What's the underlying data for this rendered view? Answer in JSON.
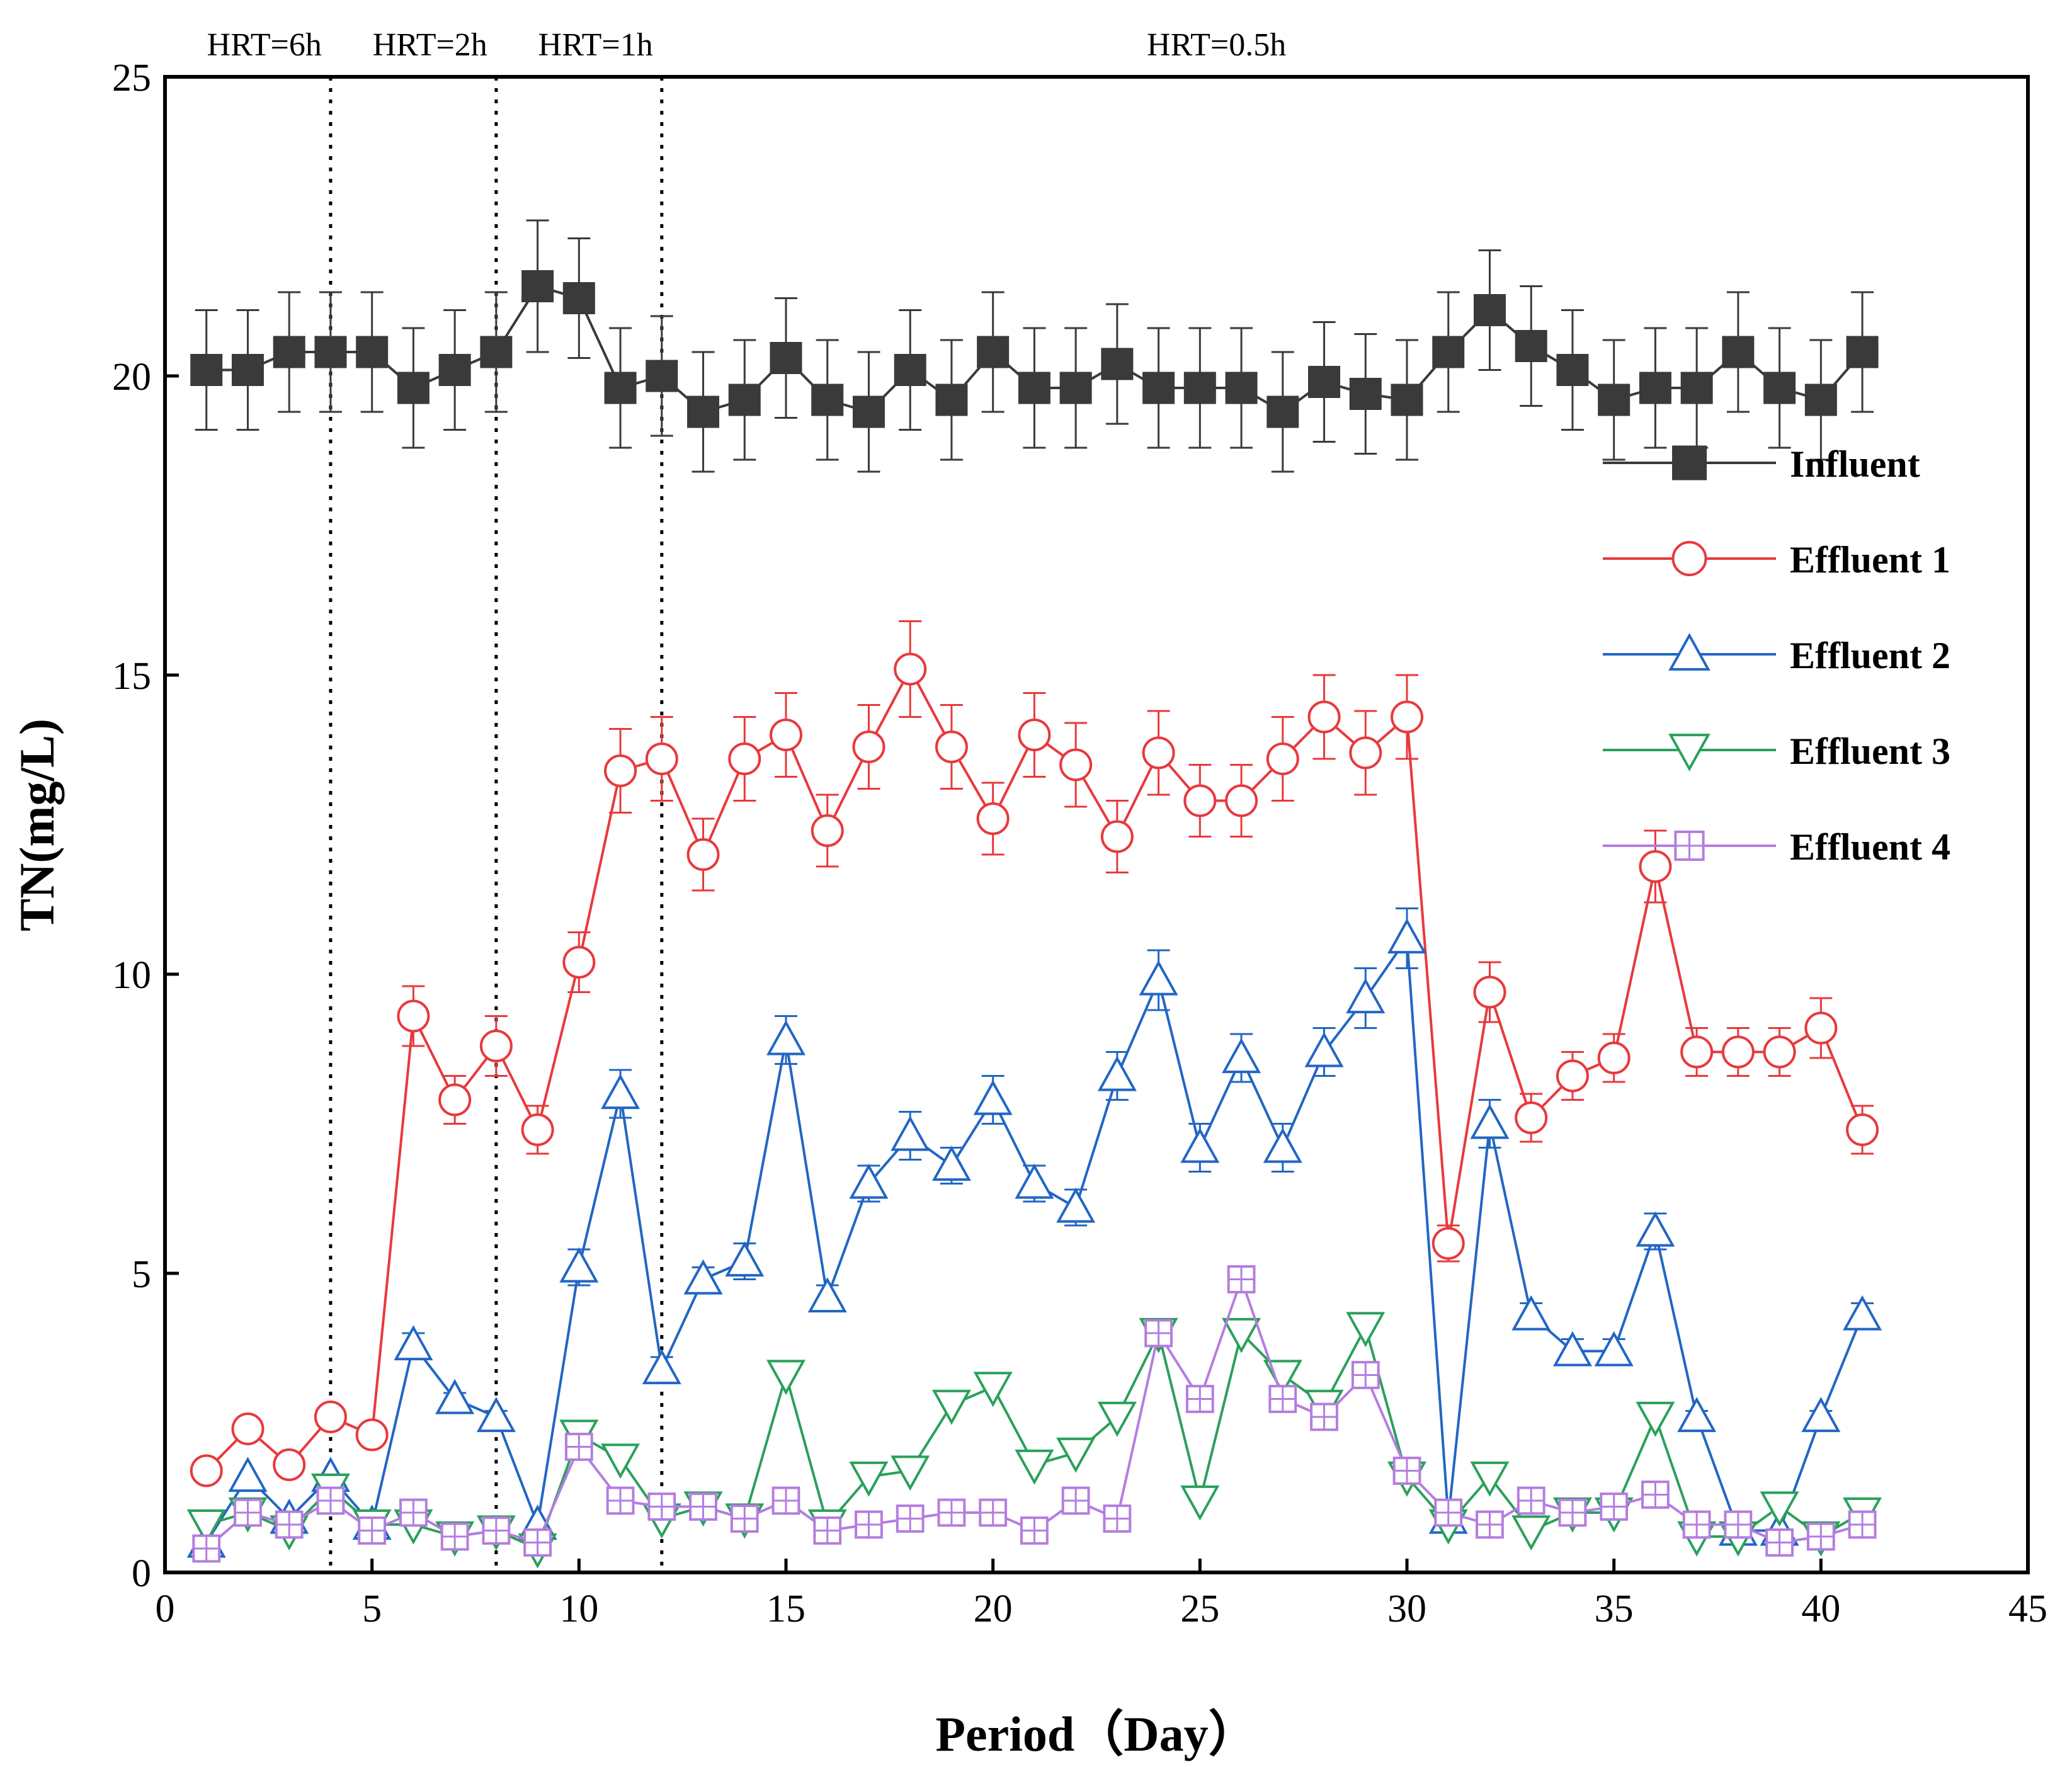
{
  "chart_data": {
    "type": "line",
    "title": "",
    "xlabel": "Period（Day）",
    "ylabel": "TN(mg/L)",
    "xlim": [
      0,
      45
    ],
    "ylim": [
      0,
      25
    ],
    "xticks": [
      0,
      5,
      10,
      15,
      20,
      25,
      30,
      35,
      40,
      45
    ],
    "yticks": [
      0,
      5,
      10,
      15,
      20,
      25
    ],
    "grid": false,
    "legend_position": "right",
    "x": [
      1,
      2,
      3,
      4,
      5,
      6,
      7,
      8,
      9,
      10,
      11,
      12,
      13,
      14,
      15,
      16,
      17,
      18,
      19,
      20,
      21,
      22,
      23,
      24,
      25,
      26,
      27,
      28,
      29,
      30,
      31,
      32,
      33,
      34,
      35,
      36,
      37,
      38,
      39,
      40,
      41
    ],
    "vlines": [
      {
        "x": 4,
        "label": "HRT=6h"
      },
      {
        "x": 8,
        "label": "HRT=2h"
      },
      {
        "x": 12,
        "label": "HRT=1h"
      }
    ],
    "hrt_labels": [
      {
        "text": "HRT=6h",
        "x": 2.4
      },
      {
        "text": "HRT=2h",
        "x": 6.4
      },
      {
        "text": "HRT=1h",
        "x": 10.4
      },
      {
        "text": "HRT=0.5h",
        "x": 25.4
      }
    ],
    "series": [
      {
        "name": "Influent",
        "color": "#3a3a3a",
        "marker": "filled-square",
        "values": [
          20.1,
          20.1,
          20.4,
          20.4,
          20.4,
          19.8,
          20.1,
          20.4,
          21.5,
          21.3,
          19.8,
          20.0,
          19.4,
          19.6,
          20.3,
          19.6,
          19.4,
          20.1,
          19.6,
          20.4,
          19.8,
          19.8,
          20.2,
          19.8,
          19.8,
          19.8,
          19.4,
          19.9,
          19.7,
          19.6,
          20.4,
          21.1,
          20.5,
          20.1,
          19.6,
          19.8,
          19.8,
          20.4,
          19.8,
          19.6,
          20.4
        ],
        "errors": [
          1.0,
          1.0,
          1.0,
          1.0,
          1.0,
          1.0,
          1.0,
          1.0,
          1.1,
          1.0,
          1.0,
          1.0,
          1.0,
          1.0,
          1.0,
          1.0,
          1.0,
          1.0,
          1.0,
          1.0,
          1.0,
          1.0,
          1.0,
          1.0,
          1.0,
          1.0,
          1.0,
          1.0,
          1.0,
          1.0,
          1.0,
          1.0,
          1.0,
          1.0,
          1.0,
          1.0,
          1.0,
          1.0,
          1.0,
          1.0,
          1.0
        ]
      },
      {
        "name": "Effluent 1",
        "color": "#e8393c",
        "marker": "circle",
        "values": [
          1.7,
          2.4,
          1.8,
          2.6,
          2.3,
          9.3,
          7.9,
          8.8,
          7.4,
          10.2,
          13.4,
          13.6,
          12.0,
          13.6,
          14.0,
          12.4,
          13.8,
          15.1,
          13.8,
          12.6,
          14.0,
          13.5,
          12.3,
          13.7,
          12.9,
          12.9,
          13.6,
          14.3,
          13.7,
          14.3,
          5.5,
          9.7,
          7.6,
          8.3,
          8.6,
          11.8,
          8.7,
          8.7,
          8.7,
          9.1,
          7.4
        ],
        "errors": [
          0,
          0,
          0,
          0,
          0,
          0.5,
          0.4,
          0.5,
          0.4,
          0.5,
          0.7,
          0.7,
          0.6,
          0.7,
          0.7,
          0.6,
          0.7,
          0.8,
          0.7,
          0.6,
          0.7,
          0.7,
          0.6,
          0.7,
          0.6,
          0.6,
          0.7,
          0.7,
          0.7,
          0.7,
          0.3,
          0.5,
          0.4,
          0.4,
          0.4,
          0.6,
          0.4,
          0.4,
          0.4,
          0.5,
          0.4
        ]
      },
      {
        "name": "Effluent 2",
        "color": "#2166c4",
        "marker": "triangle-up",
        "values": [
          0.5,
          1.6,
          0.9,
          1.6,
          0.8,
          3.8,
          2.9,
          2.6,
          0.8,
          5.1,
          8.0,
          3.4,
          4.9,
          5.2,
          8.9,
          4.6,
          6.5,
          7.3,
          6.8,
          7.9,
          6.5,
          6.1,
          8.3,
          9.9,
          7.1,
          8.6,
          7.1,
          8.7,
          9.6,
          10.6,
          0.9,
          7.5,
          4.3,
          3.7,
          3.7,
          5.7,
          2.6,
          0.7,
          0.7,
          2.6,
          4.3
        ],
        "errors": [
          0,
          0,
          0,
          0,
          0,
          0.2,
          0.1,
          0.1,
          0,
          0.3,
          0.4,
          0.2,
          0.2,
          0.3,
          0.4,
          0.2,
          0.3,
          0.4,
          0.3,
          0.4,
          0.3,
          0.3,
          0.4,
          0.5,
          0.4,
          0.4,
          0.4,
          0.4,
          0.5,
          0.5,
          0,
          0.4,
          0.2,
          0.2,
          0.2,
          0.3,
          0.1,
          0,
          0,
          0.1,
          0.2
        ]
      },
      {
        "name": "Effluent 3",
        "color": "#2aa05a",
        "marker": "triangle-down",
        "values": [
          0.8,
          1.0,
          0.7,
          1.4,
          0.8,
          0.8,
          0.6,
          0.7,
          0.4,
          2.3,
          1.9,
          0.9,
          1.1,
          0.9,
          3.3,
          0.8,
          1.6,
          1.7,
          2.8,
          3.1,
          1.8,
          2.0,
          2.6,
          4.0,
          1.2,
          4.0,
          3.3,
          2.8,
          4.1,
          1.6,
          0.8,
          1.6,
          0.7,
          1.0,
          1.0,
          2.6,
          0.6,
          0.6,
          1.1,
          0.6,
          1.0
        ],
        "errors": [
          0,
          0,
          0,
          0,
          0,
          0,
          0,
          0,
          0,
          0,
          0,
          0,
          0,
          0,
          0,
          0,
          0,
          0,
          0,
          0,
          0,
          0,
          0,
          0,
          0,
          0,
          0,
          0,
          0,
          0,
          0,
          0,
          0,
          0,
          0,
          0,
          0,
          0,
          0,
          0,
          0
        ]
      },
      {
        "name": "Effluent 4",
        "color": "#b47de0",
        "marker": "square-cross",
        "values": [
          0.4,
          1.0,
          0.8,
          1.2,
          0.7,
          1.0,
          0.6,
          0.7,
          0.5,
          2.1,
          1.2,
          1.1,
          1.1,
          0.9,
          1.2,
          0.7,
          0.8,
          0.9,
          1.0,
          1.0,
          0.7,
          1.2,
          0.9,
          4.0,
          2.9,
          4.9,
          2.9,
          2.6,
          3.3,
          1.7,
          1.0,
          0.8,
          1.2,
          1.0,
          1.1,
          1.3,
          0.8,
          0.8,
          0.5,
          0.6,
          0.8
        ],
        "errors": [
          0,
          0,
          0,
          0,
          0,
          0,
          0,
          0,
          0,
          0,
          0,
          0,
          0,
          0,
          0,
          0,
          0,
          0,
          0,
          0,
          0,
          0,
          0,
          0,
          0,
          0,
          0,
          0,
          0,
          0,
          0,
          0,
          0,
          0,
          0,
          0,
          0,
          0,
          0,
          0,
          0
        ]
      }
    ]
  }
}
